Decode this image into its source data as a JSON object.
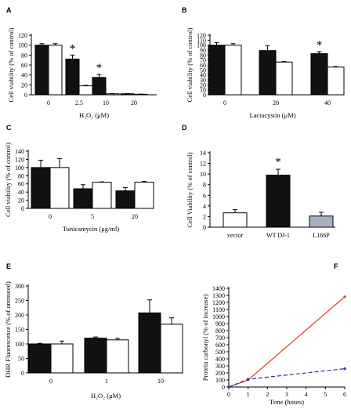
{
  "chart_data": [
    {
      "panel": "A",
      "type": "bar",
      "ylabel": "Cell viability (% of control)",
      "xlabel": "H₂O₂ (μM)",
      "ylim": [
        0,
        120
      ],
      "yticks": [
        0,
        20,
        40,
        60,
        80,
        100,
        120
      ],
      "categories": [
        "0",
        "2.5",
        "10",
        "20"
      ],
      "series": [
        {
          "fill": "#111111",
          "values": [
            100,
            72,
            35,
            2
          ],
          "errors": [
            3,
            8,
            6,
            0.5
          ]
        },
        {
          "fill": "#ffffff",
          "values": [
            100,
            18,
            2,
            1
          ],
          "errors": [
            3,
            1,
            0.5,
            0.5
          ]
        }
      ],
      "stars": [
        "",
        "*",
        "*",
        ""
      ]
    },
    {
      "panel": "B",
      "type": "bar",
      "ylabel": "Cell viability (% of control)",
      "xlabel": "Lactacystin (μM)",
      "ylim": [
        0,
        120
      ],
      "yticks": [
        0,
        10,
        20,
        30,
        40,
        50,
        60,
        70,
        80,
        90,
        100,
        110,
        120
      ],
      "categories": [
        "0",
        "20",
        "40"
      ],
      "series": [
        {
          "fill": "#111111",
          "values": [
            100,
            89,
            83
          ],
          "errors": [
            5,
            10,
            4
          ]
        },
        {
          "fill": "#ffffff",
          "values": [
            100,
            66,
            56
          ],
          "errors": [
            3,
            1,
            1
          ]
        }
      ],
      "stars": [
        "",
        "",
        "*"
      ]
    },
    {
      "panel": "C",
      "type": "bar",
      "ylabel": "Cell viability (% of control)",
      "xlabel": "Tunicamycin (μg/ml)",
      "ylim": [
        0,
        140
      ],
      "yticks": [
        0,
        20,
        40,
        60,
        80,
        100,
        120,
        140
      ],
      "categories": [
        "0",
        "5",
        "20"
      ],
      "series": [
        {
          "fill": "#111111",
          "values": [
            100,
            48,
            43
          ],
          "errors": [
            18,
            10,
            8
          ]
        },
        {
          "fill": "#ffffff",
          "values": [
            100,
            64,
            64
          ],
          "errors": [
            22,
            1,
            2
          ]
        }
      ],
      "stars": [
        "",
        "",
        ""
      ]
    },
    {
      "panel": "D",
      "type": "bar",
      "ylabel": "Cell Viability (% of control)",
      "xlabel": "",
      "ylim": [
        0,
        14
      ],
      "yticks": [
        0,
        2,
        4,
        6,
        8,
        10,
        12,
        14
      ],
      "categories": [
        "vector",
        "WT DJ-1",
        "L166P"
      ],
      "bar_fills": [
        "#ffffff",
        "#111111",
        "#a9b0c4"
      ],
      "values": [
        2.7,
        9.8,
        2.1
      ],
      "errors": [
        0.6,
        1.1,
        0.7
      ],
      "stars": [
        "",
        "*",
        ""
      ]
    },
    {
      "panel": "E",
      "type": "bar",
      "ylabel": "DHR Fluorescence (% of untreated)",
      "xlabel": "H₂O₂ (μM)",
      "ylim": [
        0,
        300
      ],
      "yticks": [
        0,
        50,
        100,
        150,
        200,
        250,
        300
      ],
      "categories": [
        "0",
        "1",
        "10"
      ],
      "series": [
        {
          "fill": "#111111",
          "values": [
            100,
            120,
            207
          ],
          "errors": [
            2,
            4,
            45
          ]
        },
        {
          "fill": "#ffffff",
          "values": [
            100,
            114,
            168
          ],
          "errors": [
            10,
            5,
            22
          ]
        }
      ],
      "stars": [
        "",
        "",
        ""
      ]
    },
    {
      "panel": "F",
      "type": "line",
      "ylabel": "Protein carbonyl (% of increase)",
      "xlabel": "Time (hours)",
      "xlim": [
        0,
        6
      ],
      "ylim": [
        0,
        1400
      ],
      "xticks": [
        0,
        1,
        2,
        3,
        4,
        5,
        6
      ],
      "yticks": [
        0,
        100,
        200,
        300,
        400,
        500,
        600,
        700,
        800,
        900,
        1000,
        1100,
        1200,
        1300,
        1400
      ],
      "series": [
        {
          "color": "#ee3322",
          "style": "solid",
          "x": [
            0,
            1,
            6
          ],
          "y": [
            0,
            100,
            1280
          ]
        },
        {
          "color": "#2233aa",
          "style": "dashed",
          "x": [
            0,
            1,
            6
          ],
          "y": [
            0,
            110,
            260
          ]
        }
      ]
    }
  ]
}
